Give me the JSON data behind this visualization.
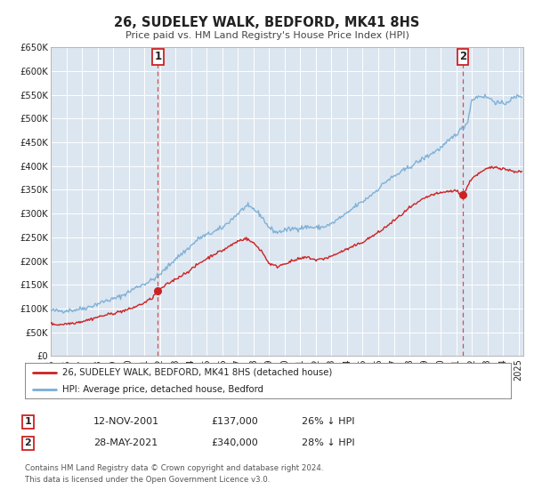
{
  "title": "26, SUDELEY WALK, BEDFORD, MK41 8HS",
  "subtitle": "Price paid vs. HM Land Registry's House Price Index (HPI)",
  "background_color": "#ffffff",
  "plot_bg_color": "#dce6f0",
  "grid_color": "#ffffff",
  "ylim": [
    0,
    650000
  ],
  "xlim_start": 1995.0,
  "xlim_end": 2025.3,
  "yticks": [
    0,
    50000,
    100000,
    150000,
    200000,
    250000,
    300000,
    350000,
    400000,
    450000,
    500000,
    550000,
    600000,
    650000
  ],
  "ytick_labels": [
    "£0",
    "£50K",
    "£100K",
    "£150K",
    "£200K",
    "£250K",
    "£300K",
    "£350K",
    "£400K",
    "£450K",
    "£500K",
    "£550K",
    "£600K",
    "£650K"
  ],
  "xticks": [
    1995,
    1996,
    1997,
    1998,
    1999,
    2000,
    2001,
    2002,
    2003,
    2004,
    2005,
    2006,
    2007,
    2008,
    2009,
    2010,
    2011,
    2012,
    2013,
    2014,
    2015,
    2016,
    2017,
    2018,
    2019,
    2020,
    2021,
    2022,
    2023,
    2024,
    2025
  ],
  "hpi_color": "#7aaed6",
  "price_color": "#cc2222",
  "marker_color": "#cc2222",
  "vline_color": "#cc3333",
  "event1_x": 2001.87,
  "event1_y_price": 137000,
  "event1_label": "1",
  "event2_x": 2021.41,
  "event2_y_price": 340000,
  "event2_label": "2",
  "legend_entries": [
    "26, SUDELEY WALK, BEDFORD, MK41 8HS (detached house)",
    "HPI: Average price, detached house, Bedford"
  ],
  "annotation1": [
    "1",
    "12-NOV-2001",
    "£137,000",
    "26% ↓ HPI"
  ],
  "annotation2": [
    "2",
    "28-MAY-2021",
    "£340,000",
    "28% ↓ HPI"
  ],
  "footer1": "Contains HM Land Registry data © Crown copyright and database right 2024.",
  "footer2": "This data is licensed under the Open Government Licence v3.0."
}
